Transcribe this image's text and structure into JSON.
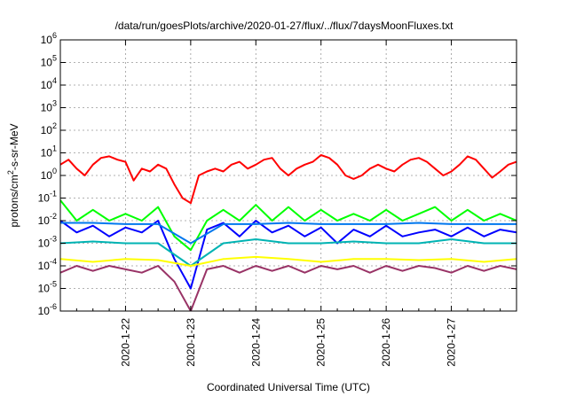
{
  "chart_data": {
    "type": "line",
    "title": "/data/run/goesPlots/archive/2020-01-27/flux/../flux/7daysMoonFluxes.txt",
    "xlabel": "Coordinated Universal Time (UTC)",
    "ylabel": "protons/cm²-s-sr-MeV",
    "yscale": "log",
    "ylim": [
      1e-06,
      1000000.0
    ],
    "xlim": [
      "2020-01-21T00:00",
      "2020-01-28T00:00"
    ],
    "x_tick_labels": [
      "2020-1-22",
      "2020-1-23",
      "2020-1-24",
      "2020-1-25",
      "2020-1-26",
      "2020-1-27"
    ],
    "y_tick_labels": [
      {
        "base": "10",
        "exp": "-6"
      },
      {
        "base": "10",
        "exp": "-5"
      },
      {
        "base": "10",
        "exp": "-4"
      },
      {
        "base": "10",
        "exp": "-3"
      },
      {
        "base": "10",
        "exp": "-2"
      },
      {
        "base": "10",
        "exp": "-1"
      },
      {
        "base": "10",
        "exp": "0"
      },
      {
        "base": "10",
        "exp": "1"
      },
      {
        "base": "10",
        "exp": "2"
      },
      {
        "base": "10",
        "exp": "3"
      },
      {
        "base": "10",
        "exp": "4"
      },
      {
        "base": "10",
        "exp": "5"
      },
      {
        "base": "10",
        "exp": "6"
      }
    ],
    "grid": true,
    "series": [
      {
        "color": "#ff0000",
        "x": [
          "2020-01-21T00:00",
          "2020-01-21T03:00",
          "2020-01-21T06:00",
          "2020-01-21T09:00",
          "2020-01-21T12:00",
          "2020-01-21T15:00",
          "2020-01-21T18:00",
          "2020-01-21T21:00",
          "2020-01-22T00:00",
          "2020-01-22T03:00",
          "2020-01-22T06:00",
          "2020-01-22T09:00",
          "2020-01-22T12:00",
          "2020-01-22T15:00",
          "2020-01-22T18:00",
          "2020-01-22T21:00",
          "2020-01-23T00:00",
          "2020-01-23T03:00",
          "2020-01-23T06:00",
          "2020-01-23T09:00",
          "2020-01-23T12:00",
          "2020-01-23T15:00",
          "2020-01-23T18:00",
          "2020-01-23T21:00",
          "2020-01-24T00:00",
          "2020-01-24T03:00",
          "2020-01-24T06:00",
          "2020-01-24T09:00",
          "2020-01-24T12:00",
          "2020-01-24T15:00",
          "2020-01-24T18:00",
          "2020-01-24T21:00",
          "2020-01-25T00:00",
          "2020-01-25T03:00",
          "2020-01-25T06:00",
          "2020-01-25T09:00",
          "2020-01-25T12:00",
          "2020-01-25T15:00",
          "2020-01-25T18:00",
          "2020-01-25T21:00",
          "2020-01-26T00:00",
          "2020-01-26T03:00",
          "2020-01-26T06:00",
          "2020-01-26T09:00",
          "2020-01-26T12:00",
          "2020-01-26T15:00",
          "2020-01-26T18:00",
          "2020-01-26T21:00",
          "2020-01-27T00:00",
          "2020-01-27T03:00",
          "2020-01-27T06:00",
          "2020-01-27T09:00",
          "2020-01-27T12:00",
          "2020-01-27T15:00",
          "2020-01-27T18:00",
          "2020-01-27T21:00",
          "2020-01-28T00:00"
        ],
        "values": [
          3,
          5,
          2,
          1,
          3,
          6,
          7,
          5,
          4,
          0.6,
          2,
          1.5,
          3,
          2,
          0.4,
          0.1,
          0.06,
          1,
          1.5,
          2,
          1.5,
          3,
          4,
          2,
          3,
          5,
          6,
          2,
          1,
          2,
          3,
          4,
          8,
          6,
          3,
          1,
          0.7,
          1,
          2,
          3,
          2,
          1.5,
          3,
          5,
          6,
          4,
          2,
          1,
          1.5,
          3,
          7,
          5,
          2,
          0.8,
          1.5,
          3,
          4
        ]
      },
      {
        "color": "#00ff00",
        "x": [
          "2020-01-21T00:00",
          "2020-01-21T06:00",
          "2020-01-21T12:00",
          "2020-01-21T18:00",
          "2020-01-22T00:00",
          "2020-01-22T06:00",
          "2020-01-22T12:00",
          "2020-01-22T18:00",
          "2020-01-23T00:00",
          "2020-01-23T06:00",
          "2020-01-23T12:00",
          "2020-01-23T18:00",
          "2020-01-24T00:00",
          "2020-01-24T06:00",
          "2020-01-24T12:00",
          "2020-01-24T18:00",
          "2020-01-25T00:00",
          "2020-01-25T06:00",
          "2020-01-25T12:00",
          "2020-01-25T18:00",
          "2020-01-26T00:00",
          "2020-01-26T06:00",
          "2020-01-26T12:00",
          "2020-01-26T18:00",
          "2020-01-27T00:00",
          "2020-01-27T06:00",
          "2020-01-27T12:00",
          "2020-01-27T18:00",
          "2020-01-28T00:00"
        ],
        "values": [
          0.08,
          0.01,
          0.03,
          0.01,
          0.02,
          0.01,
          0.04,
          0.002,
          0.0005,
          0.01,
          0.03,
          0.01,
          0.05,
          0.01,
          0.04,
          0.01,
          0.03,
          0.01,
          0.02,
          0.01,
          0.03,
          0.01,
          0.02,
          0.04,
          0.01,
          0.03,
          0.01,
          0.02,
          0.01
        ]
      },
      {
        "color": "#0000ff",
        "x": [
          "2020-01-21T00:00",
          "2020-01-21T06:00",
          "2020-01-21T12:00",
          "2020-01-21T18:00",
          "2020-01-22T00:00",
          "2020-01-22T06:00",
          "2020-01-22T12:00",
          "2020-01-22T18:00",
          "2020-01-23T00:00",
          "2020-01-23T06:00",
          "2020-01-23T12:00",
          "2020-01-23T18:00",
          "2020-01-24T00:00",
          "2020-01-24T06:00",
          "2020-01-24T12:00",
          "2020-01-24T18:00",
          "2020-01-25T00:00",
          "2020-01-25T06:00",
          "2020-01-25T12:00",
          "2020-01-25T18:00",
          "2020-01-26T00:00",
          "2020-01-26T06:00",
          "2020-01-26T12:00",
          "2020-01-26T18:00",
          "2020-01-27T00:00",
          "2020-01-27T06:00",
          "2020-01-27T12:00",
          "2020-01-27T18:00",
          "2020-01-28T00:00"
        ],
        "values": [
          0.01,
          0.003,
          0.006,
          0.002,
          0.005,
          0.003,
          0.01,
          0.0002,
          1e-05,
          0.004,
          0.008,
          0.002,
          0.01,
          0.003,
          0.006,
          0.002,
          0.005,
          0.001,
          0.004,
          0.002,
          0.006,
          0.002,
          0.003,
          0.004,
          0.002,
          0.005,
          0.002,
          0.004,
          0.003
        ]
      },
      {
        "color": "#00b3b3",
        "x": [
          "2020-01-21T00:00",
          "2020-01-21T12:00",
          "2020-01-22T00:00",
          "2020-01-22T12:00",
          "2020-01-23T00:00",
          "2020-01-23T12:00",
          "2020-01-24T00:00",
          "2020-01-24T12:00",
          "2020-01-25T00:00",
          "2020-01-25T12:00",
          "2020-01-26T00:00",
          "2020-01-26T12:00",
          "2020-01-27T00:00",
          "2020-01-27T12:00",
          "2020-01-28T00:00"
        ],
        "values": [
          0.001,
          0.0012,
          0.001,
          0.001,
          0.0001,
          0.001,
          0.0015,
          0.001,
          0.001,
          0.0012,
          0.001,
          0.001,
          0.0015,
          0.001,
          0.001
        ]
      },
      {
        "color": "#0077ee",
        "x": [
          "2020-01-21T00:00",
          "2020-01-21T12:00",
          "2020-01-22T00:00",
          "2020-01-22T12:00",
          "2020-01-23T00:00",
          "2020-01-23T12:00",
          "2020-01-24T00:00",
          "2020-01-24T12:00",
          "2020-01-25T00:00",
          "2020-01-25T12:00",
          "2020-01-26T00:00",
          "2020-01-26T12:00",
          "2020-01-27T00:00",
          "2020-01-27T12:00",
          "2020-01-28T00:00"
        ],
        "values": [
          0.008,
          0.008,
          0.007,
          0.007,
          0.001,
          0.007,
          0.007,
          0.008,
          0.007,
          0.007,
          0.007,
          0.008,
          0.007,
          0.007,
          0.007
        ]
      },
      {
        "color": "#ffff00",
        "x": [
          "2020-01-21T00:00",
          "2020-01-21T12:00",
          "2020-01-22T00:00",
          "2020-01-22T12:00",
          "2020-01-23T00:00",
          "2020-01-23T12:00",
          "2020-01-24T00:00",
          "2020-01-24T12:00",
          "2020-01-25T00:00",
          "2020-01-25T12:00",
          "2020-01-26T00:00",
          "2020-01-26T12:00",
          "2020-01-27T00:00",
          "2020-01-27T12:00",
          "2020-01-28T00:00"
        ],
        "values": [
          0.0002,
          0.00015,
          0.0002,
          0.00018,
          0.0001,
          0.0002,
          0.00025,
          0.0002,
          0.00015,
          0.0002,
          0.0002,
          0.00018,
          0.0002,
          0.00015,
          0.0002
        ]
      },
      {
        "color": "#993366",
        "x": [
          "2020-01-21T00:00",
          "2020-01-21T06:00",
          "2020-01-21T12:00",
          "2020-01-21T18:00",
          "2020-01-22T00:00",
          "2020-01-22T06:00",
          "2020-01-22T12:00",
          "2020-01-22T18:00",
          "2020-01-23T00:00",
          "2020-01-23T06:00",
          "2020-01-23T12:00",
          "2020-01-23T18:00",
          "2020-01-24T00:00",
          "2020-01-24T06:00",
          "2020-01-24T12:00",
          "2020-01-24T18:00",
          "2020-01-25T00:00",
          "2020-01-25T06:00",
          "2020-01-25T12:00",
          "2020-01-25T18:00",
          "2020-01-26T00:00",
          "2020-01-26T06:00",
          "2020-01-26T12:00",
          "2020-01-26T18:00",
          "2020-01-27T00:00",
          "2020-01-27T06:00",
          "2020-01-27T12:00",
          "2020-01-27T18:00",
          "2020-01-28T00:00"
        ],
        "values": [
          5e-05,
          0.0001,
          6e-05,
          0.0001,
          7e-05,
          5e-05,
          0.0001,
          2e-05,
          1e-06,
          7e-05,
          0.0001,
          5e-05,
          0.0001,
          6e-05,
          0.0001,
          5e-05,
          0.0001,
          7e-05,
          0.0001,
          5e-05,
          0.0001,
          6e-05,
          0.0001,
          8e-05,
          5e-05,
          0.0001,
          6e-05,
          0.0001,
          7e-05
        ]
      }
    ]
  }
}
